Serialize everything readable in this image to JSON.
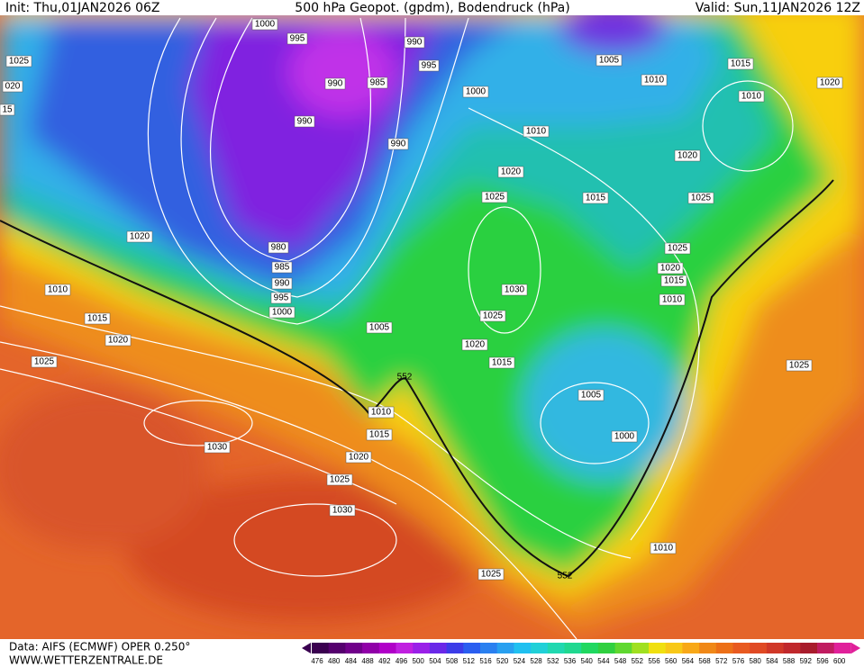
{
  "header": {
    "init": "Init: Thu,01JAN2026 06Z",
    "title": "500 hPa Geopot. (gpdm), Bodendruck (hPa)",
    "valid": "Valid: Sun,11JAN2026 12Z"
  },
  "footer": {
    "source": "Data: AIFS (ECMWF) OPER 0.250°",
    "website": "WWW.WETTERZENTRALE.DE"
  },
  "legend": {
    "levels": [
      476,
      480,
      484,
      488,
      492,
      496,
      500,
      504,
      508,
      512,
      516,
      520,
      524,
      528,
      532,
      536,
      540,
      544,
      548,
      552,
      556,
      560,
      564,
      568,
      572,
      576,
      580,
      584,
      588,
      592,
      596,
      600
    ]
  },
  "isobar_labels": [
    1000,
    995,
    990,
    995,
    1005,
    1010,
    1015,
    1020,
    1025,
    "020",
    15,
    990,
    985,
    1000,
    1010,
    990,
    1010,
    990,
    1020,
    1020,
    1025,
    1015,
    1025,
    1020,
    980,
    1025,
    985,
    1020,
    1010,
    990,
    1015,
    995,
    1030,
    1010,
    1000,
    1025,
    1015,
    1005,
    1020,
    1020,
    1025,
    1015,
    1025,
    552,
    1005,
    1010,
    1000,
    1015,
    1030,
    1020,
    1025,
    1030,
    1010,
    1025,
    552
  ]
}
